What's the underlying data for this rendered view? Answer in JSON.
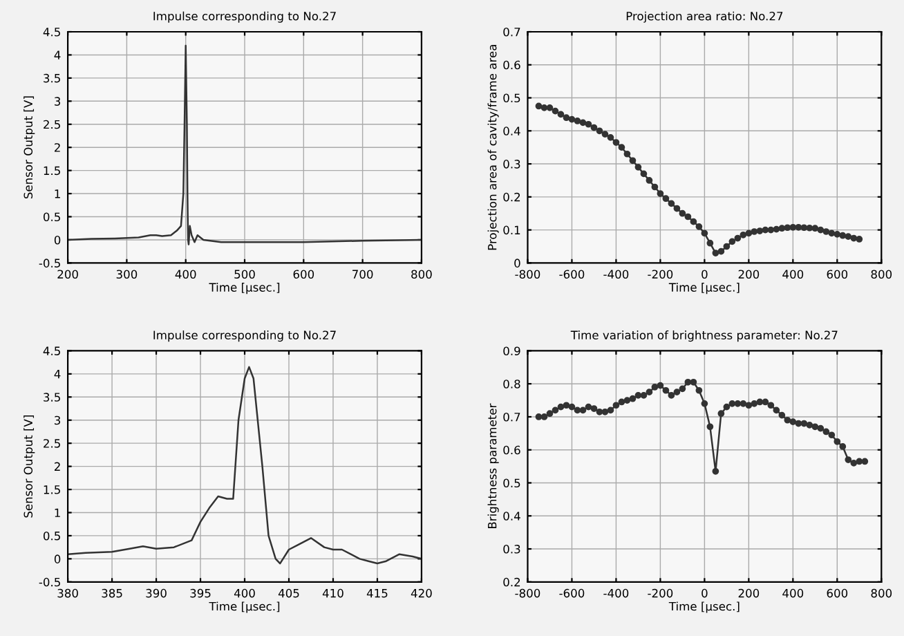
{
  "chart_data": [
    {
      "type": "line",
      "title": "Impulse corresponding to No.27",
      "xlabel": "Time [µsec.]",
      "ylabel": "Sensor Output [V]",
      "xlim": [
        200,
        800
      ],
      "xticks": [
        200,
        300,
        400,
        500,
        600,
        700,
        800
      ],
      "ylim": [
        -0.5,
        4.5
      ],
      "yticks": [
        -0.5,
        0,
        0.5,
        1,
        1.5,
        2,
        2.5,
        3,
        3.5,
        4,
        4.5
      ],
      "grid": true,
      "marker": "none",
      "line_style": "solid",
      "series": [
        {
          "color": "#333333",
          "x": [
            200,
            240,
            280,
            320,
            340,
            350,
            360,
            375,
            385,
            392,
            396,
            398,
            400,
            402,
            403,
            404,
            405,
            407,
            410,
            415,
            420,
            430,
            460,
            500,
            550,
            600,
            700,
            800
          ],
          "values": [
            0,
            0.02,
            0.03,
            0.05,
            0.1,
            0.1,
            0.08,
            0.1,
            0.2,
            0.3,
            1,
            2.5,
            4.2,
            2.5,
            1,
            0,
            -0.1,
            0.3,
            0.1,
            -0.05,
            0.1,
            0,
            -0.05,
            -0.05,
            -0.05,
            -0.05,
            -0.02,
            0
          ]
        }
      ]
    },
    {
      "type": "line",
      "title": "Projection area ratio: No.27",
      "xlabel": "Time [µsec.]",
      "ylabel": "Projection area of cavity/frame area",
      "xlim": [
        -800,
        800
      ],
      "xticks": [
        -800,
        -600,
        -400,
        -200,
        0,
        200,
        400,
        600,
        800
      ],
      "ylim": [
        0,
        0.7
      ],
      "yticks": [
        0,
        0.1,
        0.2,
        0.3,
        0.4,
        0.5,
        0.6,
        0.7
      ],
      "grid": true,
      "marker": "circle",
      "line_style": "solid",
      "series": [
        {
          "color": "#333333",
          "x": [
            -750,
            -725,
            -700,
            -675,
            -650,
            -625,
            -600,
            -575,
            -550,
            -525,
            -500,
            -475,
            -450,
            -425,
            -400,
            -375,
            -350,
            -325,
            -300,
            -275,
            -250,
            -225,
            -200,
            -175,
            -150,
            -125,
            -100,
            -75,
            -50,
            -25,
            0,
            25,
            50,
            75,
            100,
            125,
            150,
            175,
            200,
            225,
            250,
            275,
            300,
            325,
            350,
            375,
            400,
            425,
            450,
            475,
            500,
            525,
            550,
            575,
            600,
            625,
            650,
            675,
            700
          ],
          "values": [
            0.475,
            0.47,
            0.47,
            0.46,
            0.45,
            0.44,
            0.435,
            0.43,
            0.425,
            0.42,
            0.41,
            0.4,
            0.39,
            0.38,
            0.365,
            0.35,
            0.33,
            0.31,
            0.29,
            0.27,
            0.25,
            0.23,
            0.21,
            0.195,
            0.18,
            0.165,
            0.15,
            0.14,
            0.125,
            0.11,
            0.09,
            0.06,
            0.03,
            0.035,
            0.05,
            0.065,
            0.075,
            0.085,
            0.09,
            0.095,
            0.097,
            0.1,
            0.1,
            0.102,
            0.105,
            0.107,
            0.108,
            0.108,
            0.107,
            0.106,
            0.105,
            0.1,
            0.095,
            0.09,
            0.087,
            0.083,
            0.08,
            0.075,
            0.072
          ]
        }
      ]
    },
    {
      "type": "line",
      "title": "Impulse corresponding to No.27",
      "xlabel": "Time [µsec.]",
      "ylabel": "Sensor Output [V]",
      "xlim": [
        380,
        420
      ],
      "xticks": [
        380,
        385,
        390,
        395,
        400,
        405,
        410,
        415,
        420
      ],
      "ylim": [
        -0.5,
        4.5
      ],
      "yticks": [
        -0.5,
        0,
        0.5,
        1,
        1.5,
        2,
        2.5,
        3,
        3.5,
        4,
        4.5
      ],
      "grid": true,
      "marker": "none",
      "line_style": "solid",
      "series": [
        {
          "color": "#333333",
          "x": [
            380,
            382,
            385,
            387,
            388.5,
            390,
            392,
            394,
            395,
            396,
            397,
            398,
            398.7,
            399.3,
            400,
            400.5,
            401,
            402,
            402.7,
            403.5,
            404,
            405,
            406,
            407.5,
            409,
            410,
            411,
            412,
            413,
            414,
            415,
            416,
            417.5,
            419,
            420
          ],
          "values": [
            0.1,
            0.13,
            0.15,
            0.22,
            0.27,
            0.22,
            0.25,
            0.4,
            0.8,
            1.1,
            1.35,
            1.3,
            1.3,
            3.0,
            3.9,
            4.15,
            3.9,
            2,
            0.5,
            0,
            -0.1,
            0.2,
            0.3,
            0.45,
            0.25,
            0.2,
            0.2,
            0.1,
            0,
            -0.05,
            -0.1,
            -0.05,
            0.1,
            0.05,
            0
          ]
        }
      ]
    },
    {
      "type": "line",
      "title": "Time variation of brightness parameter: No.27",
      "xlabel": "Time [µsec.]",
      "ylabel": "Brightness parameter",
      "xlim": [
        -800,
        800
      ],
      "xticks": [
        -800,
        -600,
        -400,
        -200,
        0,
        200,
        400,
        600,
        800
      ],
      "ylim": [
        0.2,
        0.9
      ],
      "yticks": [
        0.2,
        0.3,
        0.4,
        0.5,
        0.6,
        0.7,
        0.8,
        0.9
      ],
      "grid": true,
      "marker": "circle",
      "line_style": "solid",
      "series": [
        {
          "color": "#333333",
          "x": [
            -750,
            -725,
            -700,
            -675,
            -650,
            -625,
            -600,
            -575,
            -550,
            -525,
            -500,
            -475,
            -450,
            -425,
            -400,
            -375,
            -350,
            -325,
            -300,
            -275,
            -250,
            -225,
            -200,
            -175,
            -150,
            -125,
            -100,
            -75,
            -50,
            -25,
            0,
            25,
            50,
            75,
            100,
            125,
            150,
            175,
            200,
            225,
            250,
            275,
            300,
            325,
            350,
            375,
            400,
            425,
            450,
            475,
            500,
            525,
            550,
            575,
            600,
            625,
            650,
            675,
            700,
            725
          ],
          "values": [
            0.7,
            0.7,
            0.71,
            0.72,
            0.73,
            0.735,
            0.73,
            0.72,
            0.72,
            0.73,
            0.725,
            0.715,
            0.715,
            0.72,
            0.735,
            0.745,
            0.75,
            0.755,
            0.765,
            0.765,
            0.775,
            0.79,
            0.795,
            0.78,
            0.765,
            0.775,
            0.785,
            0.805,
            0.805,
            0.78,
            0.74,
            0.67,
            0.535,
            0.71,
            0.73,
            0.74,
            0.74,
            0.74,
            0.735,
            0.74,
            0.745,
            0.745,
            0.735,
            0.72,
            0.705,
            0.69,
            0.685,
            0.68,
            0.68,
            0.675,
            0.67,
            0.665,
            0.655,
            0.645,
            0.625,
            0.61,
            0.57,
            0.56,
            0.565,
            0.565
          ]
        }
      ]
    }
  ]
}
